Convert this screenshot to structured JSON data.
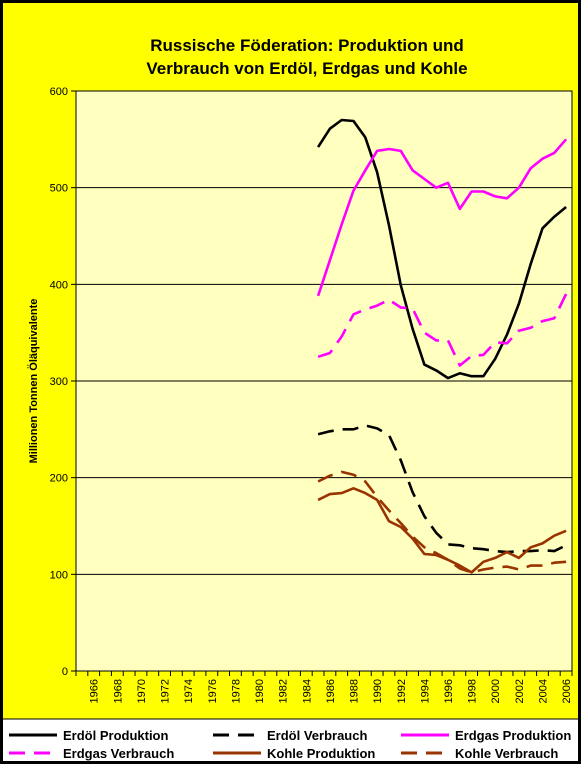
{
  "chart_data": {
    "type": "line",
    "title_lines": [
      "Russische Föderation: Produktion und",
      "Verbrauch von Erdöl, Erdgas und Kohle"
    ],
    "ylabel": "Millionen Tonnen Öläquivalente",
    "xlabel": "",
    "ylim": [
      0,
      600
    ],
    "y_ticks": [
      "0",
      "100",
      "200",
      "300",
      "400",
      "500",
      "600"
    ],
    "x_range": [
      1965,
      2006
    ],
    "x_tick_labels": [
      "1966",
      "1968",
      "1970",
      "1972",
      "1974",
      "1976",
      "1978",
      "1980",
      "1982",
      "1984",
      "1986",
      "1988",
      "1990",
      "1992",
      "1994",
      "1996",
      "1998",
      "2000",
      "2002",
      "2004",
      "2006"
    ],
    "grid": true,
    "legend_position": "bottom",
    "x": [
      1985,
      1986,
      1987,
      1988,
      1989,
      1990,
      1991,
      1992,
      1993,
      1994,
      1995,
      1996,
      1997,
      1998,
      1999,
      2000,
      2001,
      2002,
      2003,
      2004,
      2005,
      2006
    ],
    "series": [
      {
        "name": "Erdöl Produktion",
        "color": "#000000",
        "dash": "solid",
        "values": [
          542,
          561,
          570,
          569,
          552,
          516,
          461,
          399,
          354,
          317,
          311,
          303,
          308,
          305,
          305,
          323,
          348,
          380,
          421,
          458,
          470,
          480
        ]
      },
      {
        "name": "Erdöl Verbrauch",
        "color": "#000000",
        "dash": "dashed",
        "values": [
          245,
          248,
          250,
          250,
          254,
          251,
          244,
          218,
          185,
          160,
          143,
          131,
          130,
          127,
          126,
          124,
          123,
          124,
          124,
          125,
          124,
          130
        ]
      },
      {
        "name": "Erdgas Produktion",
        "color": "#ff00ff",
        "dash": "solid",
        "values": [
          388,
          425,
          462,
          497,
          518,
          538,
          540,
          538,
          518,
          509,
          500,
          505,
          478,
          496,
          496,
          491,
          489,
          500,
          520,
          530,
          536,
          550
        ]
      },
      {
        "name": "Erdgas Verbrauch",
        "color": "#ff00ff",
        "dash": "dashed",
        "values": [
          325,
          329,
          346,
          369,
          374,
          378,
          384,
          376,
          375,
          350,
          342,
          342,
          316,
          326,
          327,
          340,
          339,
          352,
          355,
          362,
          365,
          390
        ]
      },
      {
        "name": "Kohle Produktion",
        "color": "#993300",
        "dash": "solid",
        "values": [
          177,
          183,
          184,
          189,
          184,
          177,
          155,
          149,
          137,
          121,
          120,
          115,
          109,
          102,
          113,
          117,
          123,
          117,
          128,
          132,
          140,
          145
        ]
      },
      {
        "name": "Kohle Verbrauch",
        "color": "#993300",
        "dash": "dashed",
        "values": [
          196,
          202,
          206,
          203,
          196,
          180,
          166,
          153,
          139,
          128,
          122,
          115,
          106,
          102,
          105,
          107,
          108,
          105,
          109,
          109,
          112,
          113
        ]
      }
    ]
  }
}
